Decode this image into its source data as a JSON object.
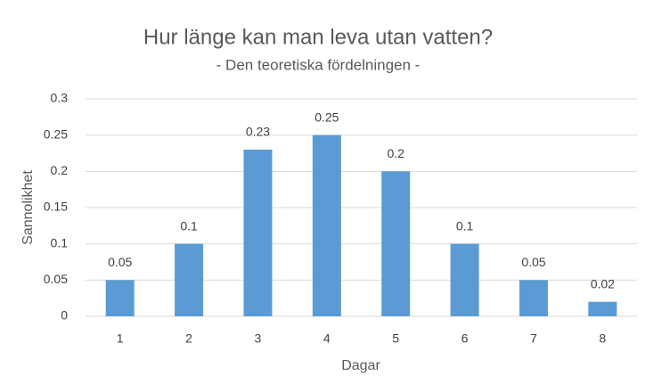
{
  "chart_data": {
    "type": "bar",
    "title": "Hur länge kan man leva utan vatten?",
    "subtitle": "- Den teoretiska fördelningen -",
    "x_label": "Dagar",
    "y_label": "Sannolikhet",
    "categories": [
      "1",
      "2",
      "3",
      "4",
      "5",
      "6",
      "7",
      "8"
    ],
    "values": [
      0.05,
      0.1,
      0.23,
      0.25,
      0.2,
      0.1,
      0.05,
      0.02
    ],
    "color": "#5b9bd5",
    "ylim": [
      0,
      0.3
    ],
    "yticks": [
      0,
      0.05,
      0.1,
      0.15,
      0.2,
      0.25,
      0.3
    ],
    "grid": true,
    "data_labels": true
  }
}
